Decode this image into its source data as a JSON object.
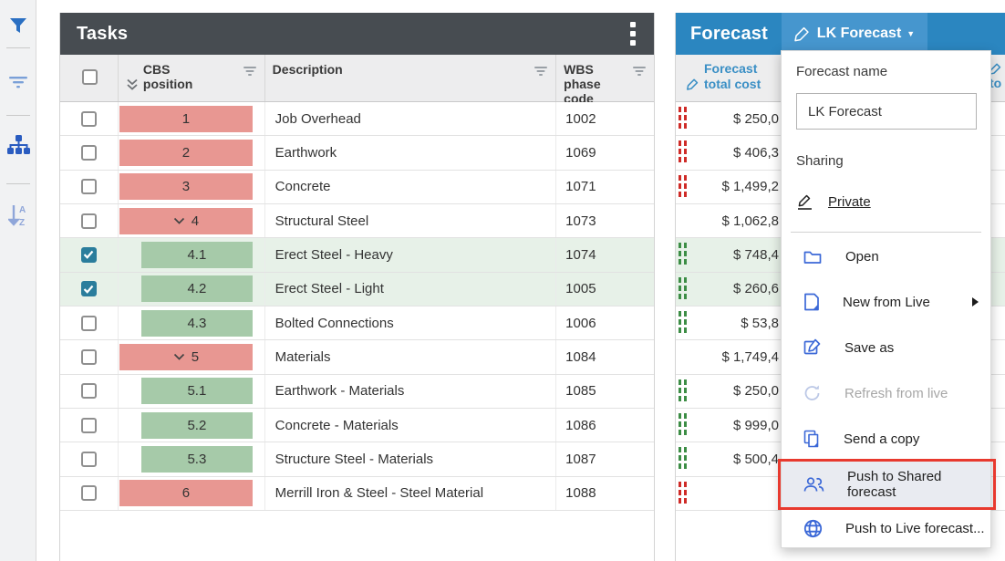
{
  "colors": {
    "tasks_header_bg": "#474c51",
    "forecast_header_bg": "#2b86c0",
    "forecast_button_bg": "#4696ce",
    "column_header_text_blue": "#3a8fc5",
    "badge_red": "#e89792",
    "badge_green": "#a6caa9",
    "selected_row_bg": "#e7f1e8",
    "indicator_red": "#cf2b27",
    "indicator_green": "#3c8d45",
    "checkbox_checked": "#2a7d9c",
    "menu_icon_blue": "#3b68d7",
    "menu_icon_disabled": "#bcc8e6",
    "annotation_red": "#e8392e"
  },
  "toolbar": {
    "icons": [
      {
        "name": "filter-funnel-icon"
      },
      {
        "name": "filter-lines-icon"
      },
      {
        "name": "hierarchy-icon"
      },
      {
        "name": "sort-az-icon"
      }
    ]
  },
  "tasks_panel": {
    "title": "Tasks",
    "columns": {
      "cbs": "CBS position",
      "description": "Description",
      "wbs": "WBS phase code"
    },
    "rows": [
      {
        "cbs": "1",
        "type": "parent",
        "expanded": false,
        "description": "Job Overhead",
        "wbs": "1002",
        "checked": false,
        "selected": false
      },
      {
        "cbs": "2",
        "type": "parent",
        "expanded": false,
        "description": "Earthwork",
        "wbs": "1069",
        "checked": false,
        "selected": false
      },
      {
        "cbs": "3",
        "type": "parent",
        "expanded": false,
        "description": "Concrete",
        "wbs": "1071",
        "checked": false,
        "selected": false
      },
      {
        "cbs": "4",
        "type": "parent",
        "expanded": true,
        "description": "Structural Steel",
        "wbs": "1073",
        "checked": false,
        "selected": false
      },
      {
        "cbs": "4.1",
        "type": "child",
        "expanded": false,
        "description": "Erect Steel - Heavy",
        "wbs": "1074",
        "checked": true,
        "selected": true
      },
      {
        "cbs": "4.2",
        "type": "child",
        "expanded": false,
        "description": "Erect Steel - Light",
        "wbs": "1005",
        "checked": true,
        "selected": true
      },
      {
        "cbs": "4.3",
        "type": "child",
        "expanded": false,
        "description": "Bolted Connections",
        "wbs": "1006",
        "checked": false,
        "selected": false
      },
      {
        "cbs": "5",
        "type": "parent",
        "expanded": true,
        "description": "Materials",
        "wbs": "1084",
        "checked": false,
        "selected": false
      },
      {
        "cbs": "5.1",
        "type": "child",
        "expanded": false,
        "description": "Earthwork - Materials",
        "wbs": "1085",
        "checked": false,
        "selected": false
      },
      {
        "cbs": "5.2",
        "type": "child",
        "expanded": false,
        "description": "Concrete - Materials",
        "wbs": "1086",
        "checked": false,
        "selected": false
      },
      {
        "cbs": "5.3",
        "type": "child",
        "expanded": false,
        "description": "Structure Steel - Materials",
        "wbs": "1087",
        "checked": false,
        "selected": false
      },
      {
        "cbs": "6",
        "type": "parent",
        "expanded": false,
        "description": "Merrill Iron & Steel - Steel Material",
        "wbs": "1088",
        "checked": false,
        "selected": false
      }
    ]
  },
  "forecast_panel": {
    "title": "Forecast",
    "button_label": "LK Forecast",
    "columns": {
      "total_cost": "Forecast total cost",
      "partial_right": "to"
    },
    "rows": [
      {
        "cost": "$ 250,0",
        "indicator": "red",
        "selected": false
      },
      {
        "cost": "$ 406,3",
        "indicator": "red",
        "selected": false
      },
      {
        "cost": "$ 1,499,2",
        "indicator": "red",
        "selected": false
      },
      {
        "cost": "$ 1,062,8",
        "indicator": "none",
        "selected": false
      },
      {
        "cost": "$ 748,4",
        "indicator": "green",
        "selected": true
      },
      {
        "cost": "$ 260,6",
        "indicator": "green",
        "selected": true
      },
      {
        "cost": "$ 53,8",
        "indicator": "green",
        "selected": false
      },
      {
        "cost": "$ 1,749,4",
        "indicator": "none",
        "selected": false
      },
      {
        "cost": "$ 250,0",
        "indicator": "green",
        "selected": false
      },
      {
        "cost": "$ 999,0",
        "indicator": "green",
        "selected": false
      },
      {
        "cost": "$ 500,4",
        "indicator": "green",
        "selected": false
      },
      {
        "cost": "",
        "indicator": "red",
        "selected": false
      }
    ]
  },
  "forecast_menu": {
    "name_label": "Forecast name",
    "name_value": "LK Forecast",
    "sharing_label": "Sharing",
    "sharing_value": "Private",
    "items": [
      {
        "label": "Open",
        "icon": "folder-icon",
        "state": "normal",
        "submenu": false,
        "annotated": false
      },
      {
        "label": "New from Live",
        "icon": "new-file-icon",
        "state": "normal",
        "submenu": true,
        "annotated": false
      },
      {
        "label": "Save as",
        "icon": "save-as-icon",
        "state": "normal",
        "submenu": false,
        "annotated": false
      },
      {
        "label": "Refresh from live",
        "icon": "refresh-icon",
        "state": "disabled",
        "submenu": false,
        "annotated": false
      },
      {
        "label": "Send a copy",
        "icon": "copy-icon",
        "state": "normal",
        "submenu": false,
        "annotated": false
      },
      {
        "label": "Push to Shared forecast",
        "icon": "people-icon",
        "state": "highlighted",
        "submenu": false,
        "annotated": true
      },
      {
        "label": "Push to Live forecast...",
        "icon": "globe-icon",
        "state": "normal",
        "submenu": false,
        "annotated": false
      }
    ]
  }
}
